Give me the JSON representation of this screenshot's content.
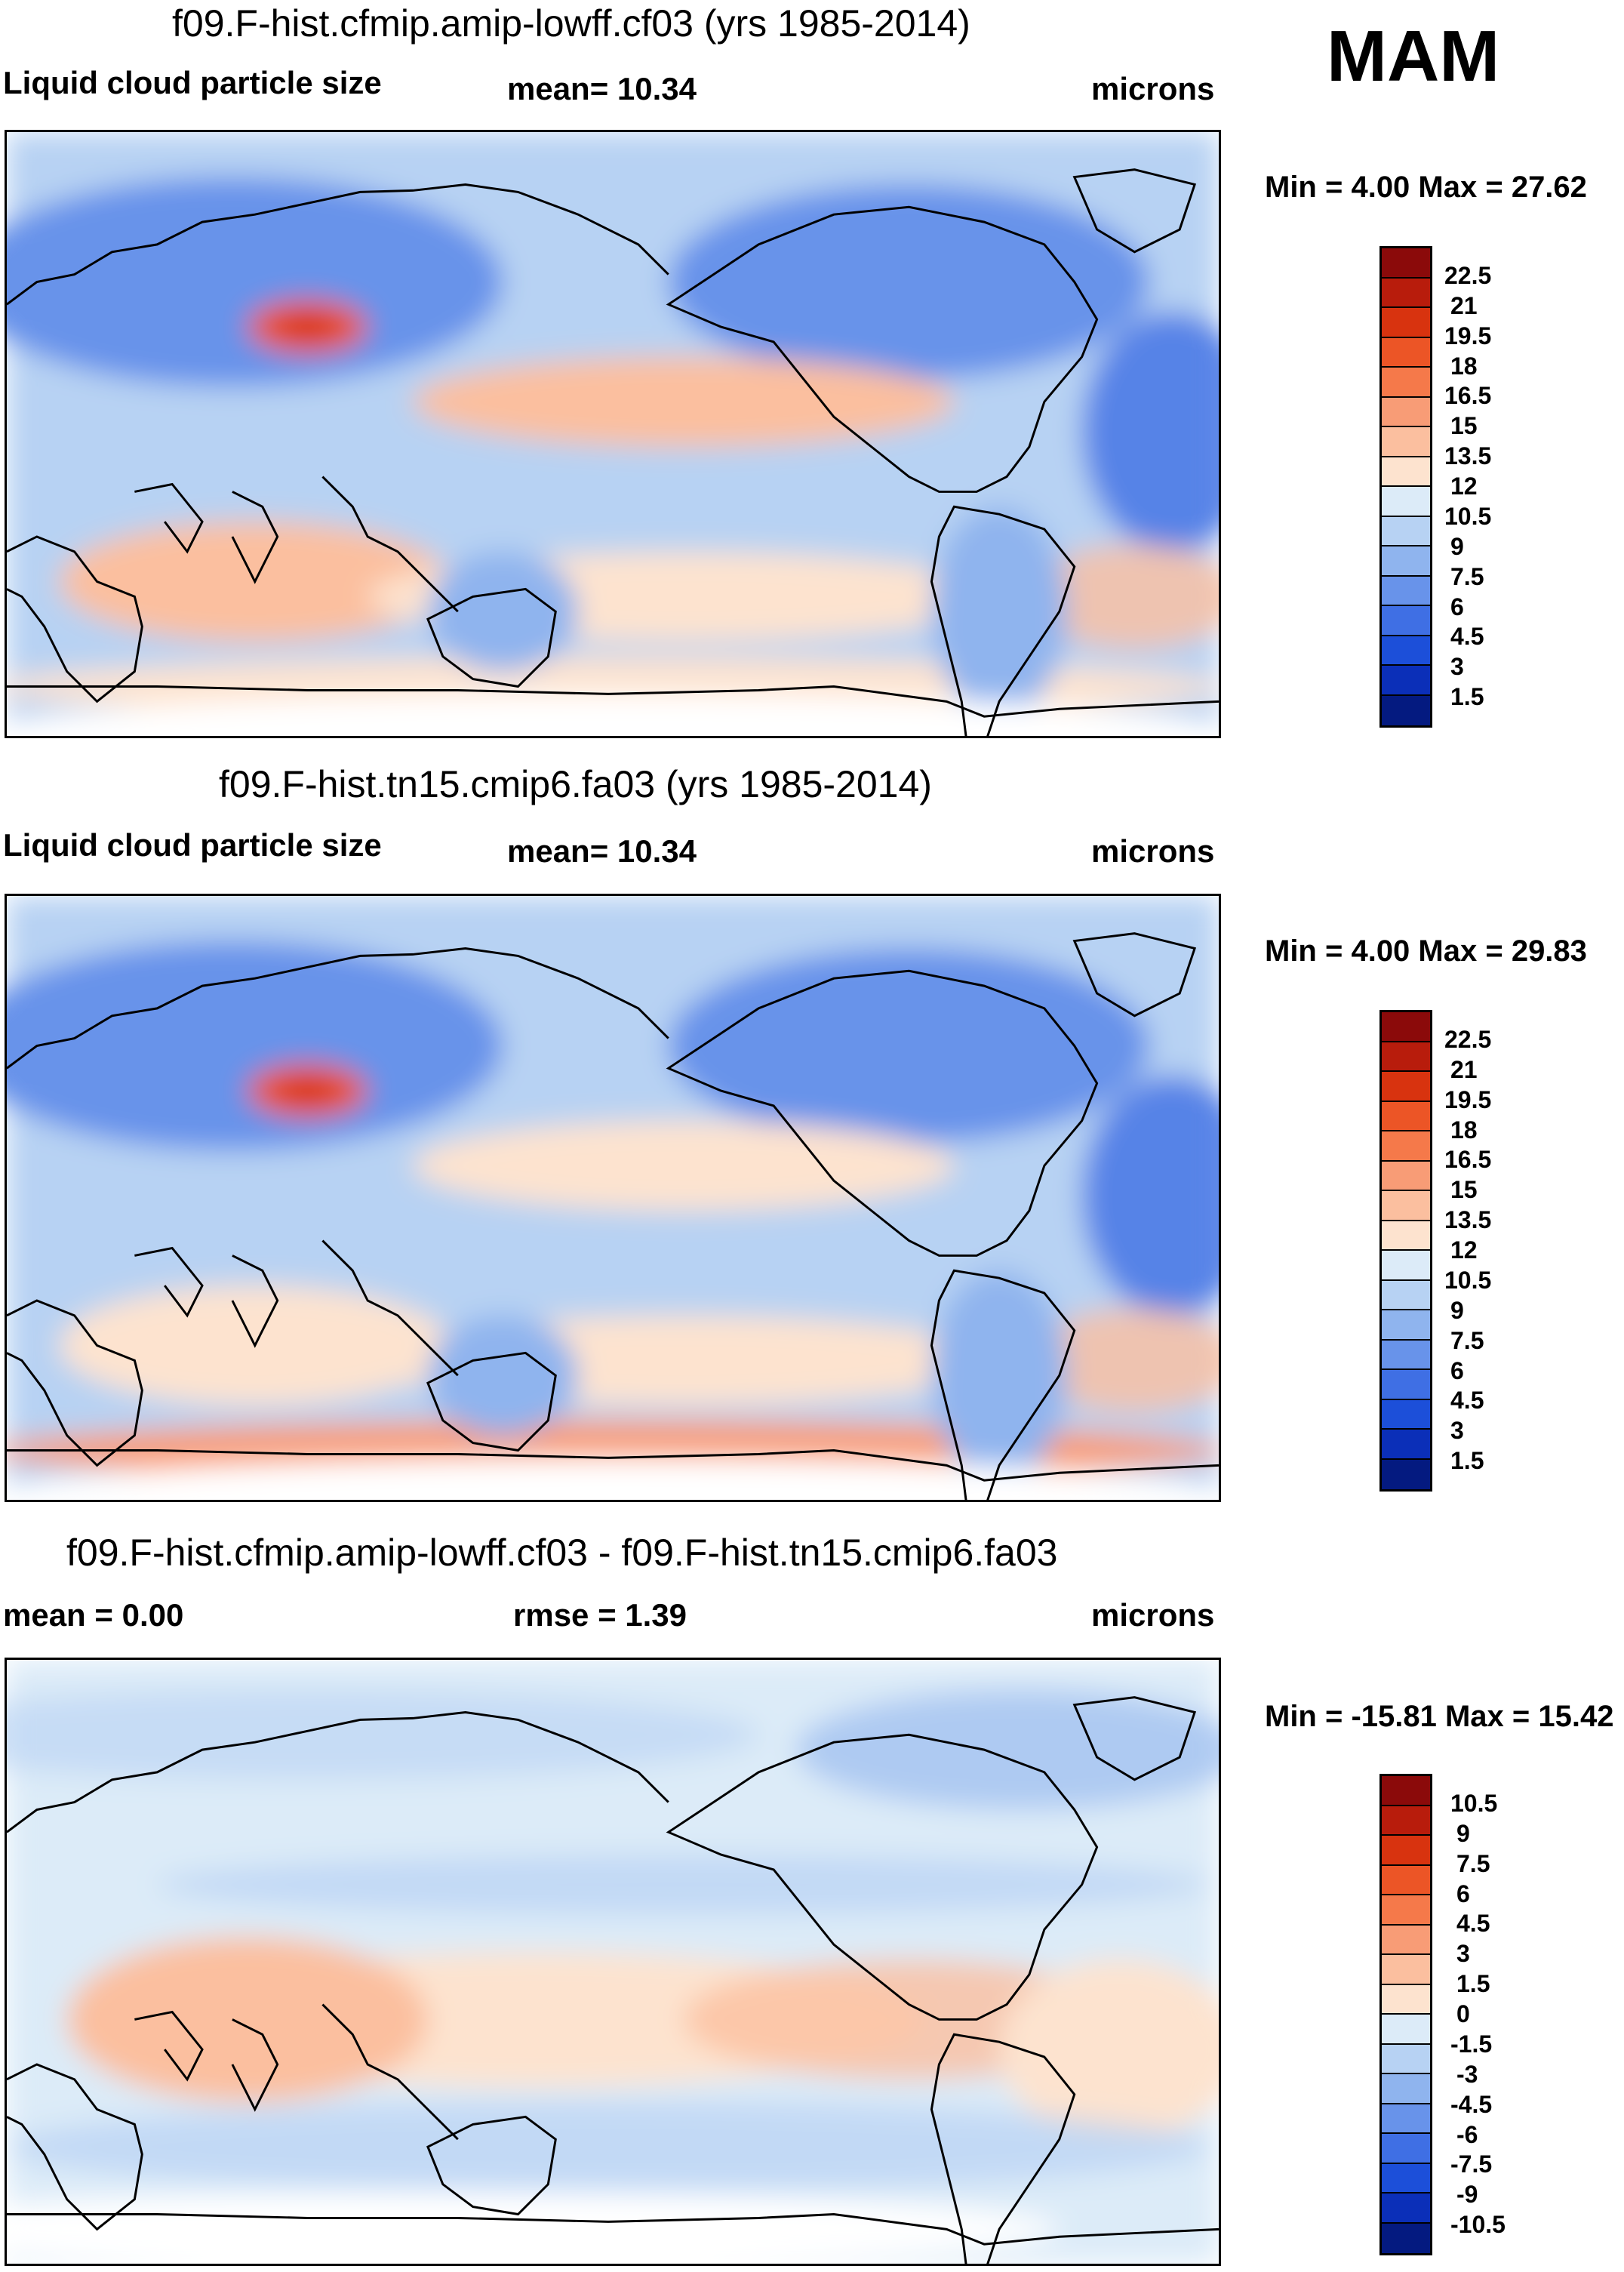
{
  "season": "MAM",
  "panels": [
    {
      "title": "f09.F-hist.cfmip.amip-lowff.cf03 (yrs 1985-2014)",
      "left_label": "Liquid cloud particle size",
      "center_label": "mean=  10.34",
      "right_label": "microns",
      "minmax": "Min =   4.00 Max =  27.62",
      "kind": "abs"
    },
    {
      "title": "f09.F-hist.tn15.cmip6.fa03 (yrs 1985-2014)",
      "left_label": "Liquid cloud particle size",
      "center_label": "mean=  10.34",
      "right_label": "microns",
      "minmax": "Min =   4.00 Max =  29.83",
      "kind": "abs"
    },
    {
      "title": "f09.F-hist.cfmip.amip-lowff.cf03 - f09.F-hist.tn15.cmip6.fa03",
      "left_label": "mean =   0.00",
      "center_label": "rmse =   1.39",
      "right_label": "microns",
      "minmax": "Min = -15.81 Max =  15.42",
      "kind": "diff"
    }
  ],
  "colorbars": {
    "abs": {
      "labels": [
        "22.5",
        "21",
        "19.5",
        "18",
        "16.5",
        "15",
        "13.5",
        "12",
        "10.5",
        "9",
        "7.5",
        "6",
        "4.5",
        "3",
        "1.5"
      ],
      "colors": [
        "#8b0a0a",
        "#b81c0c",
        "#d8330f",
        "#ec5526",
        "#f5794a",
        "#f89c76",
        "#fbbf9f",
        "#fde3cf",
        "#dcebf8",
        "#b7d2f3",
        "#8fb4ee",
        "#6893ea",
        "#3f6fe4",
        "#1c4fd9",
        "#0b2fb8",
        "#041a80"
      ]
    },
    "diff": {
      "labels": [
        "10.5",
        "9",
        "7.5",
        "6",
        "4.5",
        "3",
        "1.5",
        "0",
        "-1.5",
        "-3",
        "-4.5",
        "-6",
        "-7.5",
        "-9",
        "-10.5"
      ],
      "colors": [
        "#8b0a0a",
        "#b81c0c",
        "#d8330f",
        "#ec5526",
        "#f5794a",
        "#f89c76",
        "#fbbf9f",
        "#fde3cf",
        "#dcebf8",
        "#b7d2f3",
        "#8fb4ee",
        "#6893ea",
        "#3f6fe4",
        "#1c4fd9",
        "#0b2fb8",
        "#041a80"
      ]
    }
  },
  "chart_data": [
    {
      "type": "heatmap",
      "title": "f09.F-hist.cfmip.amip-lowff.cf03 (yrs 1985-2014)",
      "variable": "Liquid cloud particle size",
      "units": "microns",
      "season": "MAM",
      "mean": 10.34,
      "min": 4.0,
      "max": 27.62,
      "contour_levels": [
        1.5,
        3,
        4.5,
        6,
        7.5,
        9,
        10.5,
        12,
        13.5,
        15,
        16.5,
        18,
        19.5,
        21,
        22.5
      ]
    },
    {
      "type": "heatmap",
      "title": "f09.F-hist.tn15.cmip6.fa03 (yrs 1985-2014)",
      "variable": "Liquid cloud particle size",
      "units": "microns",
      "season": "MAM",
      "mean": 10.34,
      "min": 4.0,
      "max": 29.83,
      "contour_levels": [
        1.5,
        3,
        4.5,
        6,
        7.5,
        9,
        10.5,
        12,
        13.5,
        15,
        16.5,
        18,
        19.5,
        21,
        22.5
      ]
    },
    {
      "type": "heatmap",
      "title": "f09.F-hist.cfmip.amip-lowff.cf03 - f09.F-hist.tn15.cmip6.fa03",
      "units": "microns",
      "season": "MAM",
      "mean": 0.0,
      "rmse": 1.39,
      "min": -15.81,
      "max": 15.42,
      "contour_levels": [
        -10.5,
        -9,
        -7.5,
        -6,
        -4.5,
        -3,
        -1.5,
        0,
        1.5,
        3,
        4.5,
        6,
        7.5,
        9,
        10.5
      ]
    }
  ]
}
